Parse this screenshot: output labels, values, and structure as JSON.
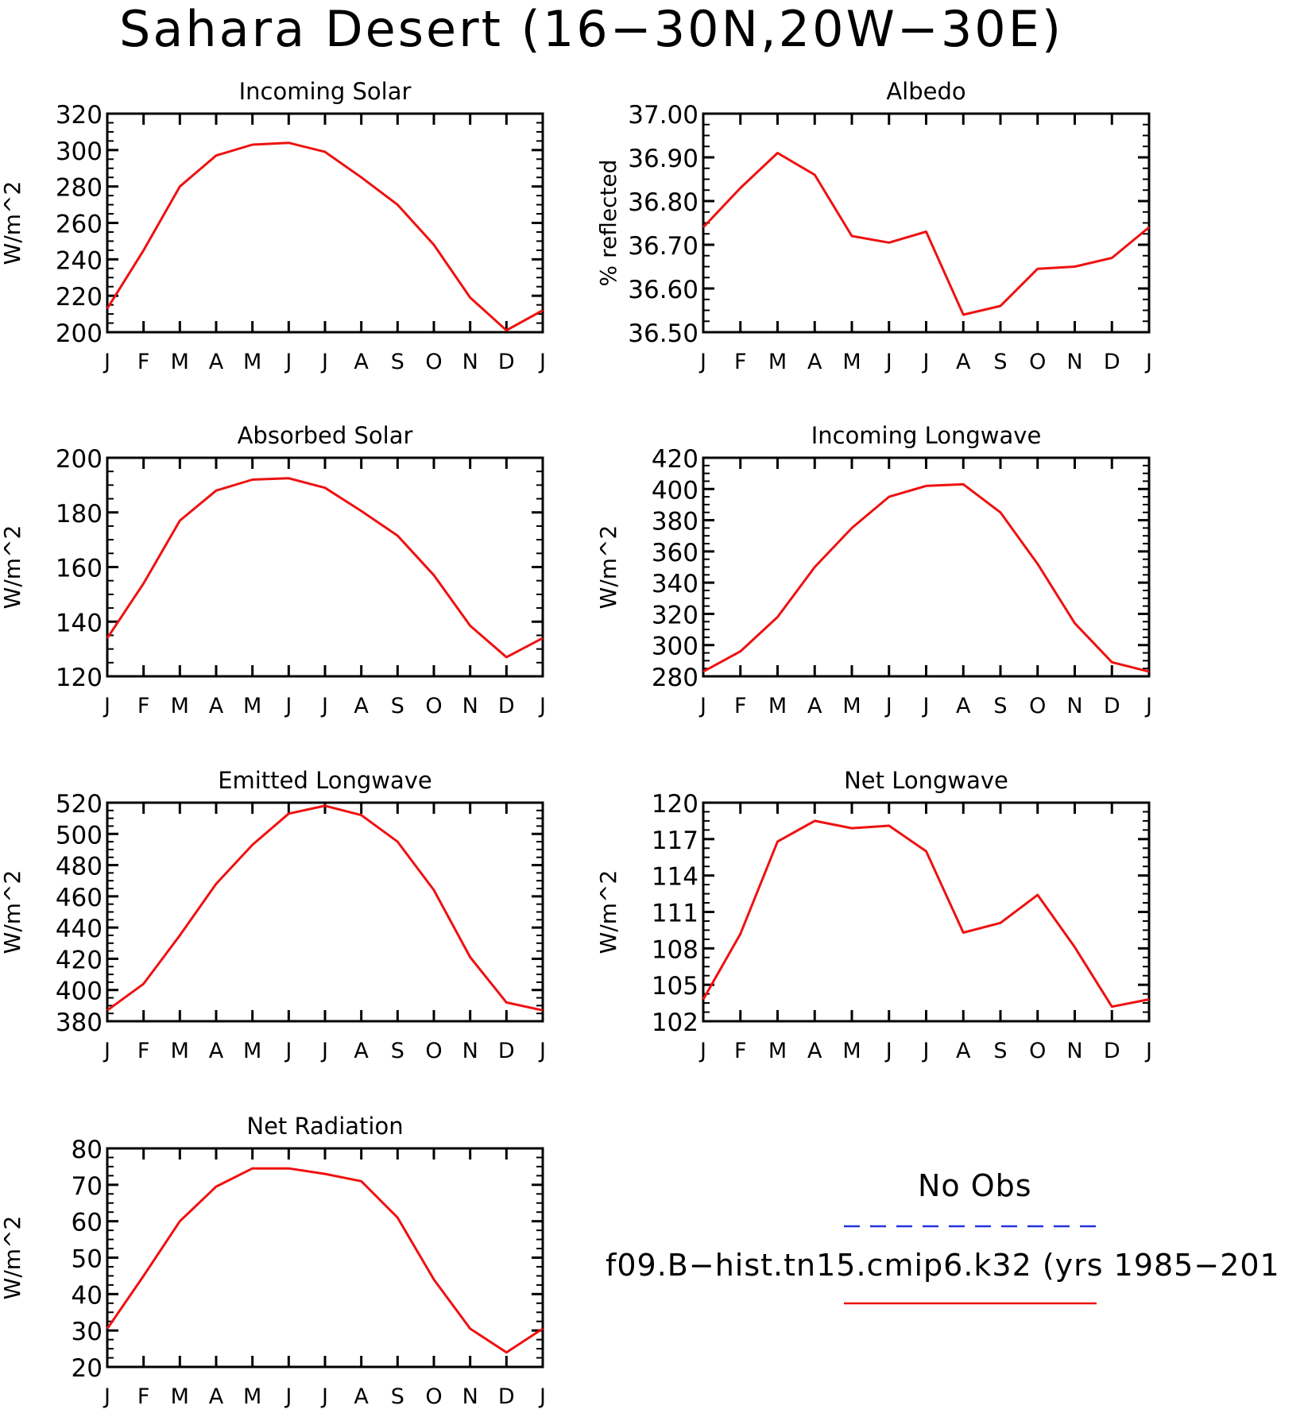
{
  "title": "Sahara Desert (16−30N,20W−30E)",
  "legend": {
    "obs_label": "No Obs",
    "obs_color": "#2233dd",
    "model_label": "f09.B−hist.tn15.cmip6.k32 (yrs 1985−201",
    "model_color": "#ee1111"
  },
  "chart_data": [
    {
      "type": "line",
      "title": "Incoming Solar",
      "ylabel": "W/m^2",
      "categories": [
        "J",
        "F",
        "M",
        "A",
        "M",
        "J",
        "J",
        "A",
        "S",
        "O",
        "N",
        "D",
        "J"
      ],
      "ylim": [
        200,
        320
      ],
      "yticks": [
        "200",
        "220",
        "240",
        "260",
        "280",
        "300",
        "320"
      ],
      "series": [
        {
          "values": [
            213,
            245,
            280,
            297,
            303,
            304,
            299,
            285,
            270,
            248,
            219,
            201,
            212
          ]
        }
      ]
    },
    {
      "type": "line",
      "title": "Albedo",
      "ylabel": "% reflected",
      "categories": [
        "J",
        "F",
        "M",
        "A",
        "M",
        "J",
        "J",
        "A",
        "S",
        "O",
        "N",
        "D",
        "J"
      ],
      "ylim": [
        36.5,
        37.0
      ],
      "yticks": [
        "36.50",
        "36.60",
        "36.70",
        "36.80",
        "36.90",
        "37.00"
      ],
      "series": [
        {
          "values": [
            36.74,
            36.83,
            36.91,
            36.86,
            36.72,
            36.705,
            36.73,
            36.54,
            36.56,
            36.645,
            36.65,
            36.67,
            36.74
          ]
        }
      ]
    },
    {
      "type": "line",
      "title": "Absorbed Solar",
      "ylabel": "W/m^2",
      "categories": [
        "J",
        "F",
        "M",
        "A",
        "M",
        "J",
        "J",
        "A",
        "S",
        "O",
        "N",
        "D",
        "J"
      ],
      "ylim": [
        120,
        200
      ],
      "yticks": [
        "120",
        "140",
        "160",
        "180",
        "200"
      ],
      "series": [
        {
          "values": [
            134,
            154,
            177,
            188,
            192,
            192.5,
            189,
            180.5,
            171.5,
            157,
            138.5,
            127,
            134
          ]
        }
      ]
    },
    {
      "type": "line",
      "title": "Incoming Longwave",
      "ylabel": "W/m^2",
      "categories": [
        "J",
        "F",
        "M",
        "A",
        "M",
        "J",
        "J",
        "A",
        "S",
        "O",
        "N",
        "D",
        "J"
      ],
      "ylim": [
        280,
        420
      ],
      "yticks": [
        "280",
        "300",
        "320",
        "340",
        "360",
        "380",
        "400",
        "420"
      ],
      "series": [
        {
          "values": [
            283,
            296,
            318,
            350,
            375,
            395,
            402,
            403,
            385,
            352,
            314,
            289,
            283
          ]
        }
      ]
    },
    {
      "type": "line",
      "title": "Emitted Longwave",
      "ylabel": "W/m^2",
      "categories": [
        "J",
        "F",
        "M",
        "A",
        "M",
        "J",
        "J",
        "A",
        "S",
        "O",
        "N",
        "D",
        "J"
      ],
      "ylim": [
        380,
        520
      ],
      "yticks": [
        "380",
        "400",
        "420",
        "440",
        "460",
        "480",
        "500",
        "520"
      ],
      "series": [
        {
          "values": [
            387,
            404,
            435,
            468,
            493,
            513,
            518,
            512,
            495,
            464,
            421,
            392,
            387
          ]
        }
      ]
    },
    {
      "type": "line",
      "title": "Net Longwave",
      "ylabel": "W/m^2",
      "categories": [
        "J",
        "F",
        "M",
        "A",
        "M",
        "J",
        "J",
        "A",
        "S",
        "O",
        "N",
        "D",
        "J"
      ],
      "ylim": [
        102,
        120
      ],
      "yticks": [
        "102",
        "105",
        "108",
        "111",
        "114",
        "117",
        "120"
      ],
      "series": [
        {
          "values": [
            103.8,
            109.2,
            116.8,
            118.5,
            117.9,
            118.1,
            116,
            109.3,
            110.1,
            112.4,
            108.1,
            103.2,
            103.8
          ]
        }
      ]
    },
    {
      "type": "line",
      "title": "Net Radiation",
      "ylabel": "W/m^2",
      "categories": [
        "J",
        "F",
        "M",
        "A",
        "M",
        "J",
        "J",
        "A",
        "S",
        "O",
        "N",
        "D",
        "J"
      ],
      "ylim": [
        20,
        80
      ],
      "yticks": [
        "20",
        "30",
        "40",
        "50",
        "60",
        "70",
        "80"
      ],
      "series": [
        {
          "values": [
            30.5,
            45,
            60,
            69.5,
            74.5,
            74.5,
            73,
            71,
            61,
            44,
            30.5,
            24,
            30.5
          ]
        }
      ]
    }
  ]
}
